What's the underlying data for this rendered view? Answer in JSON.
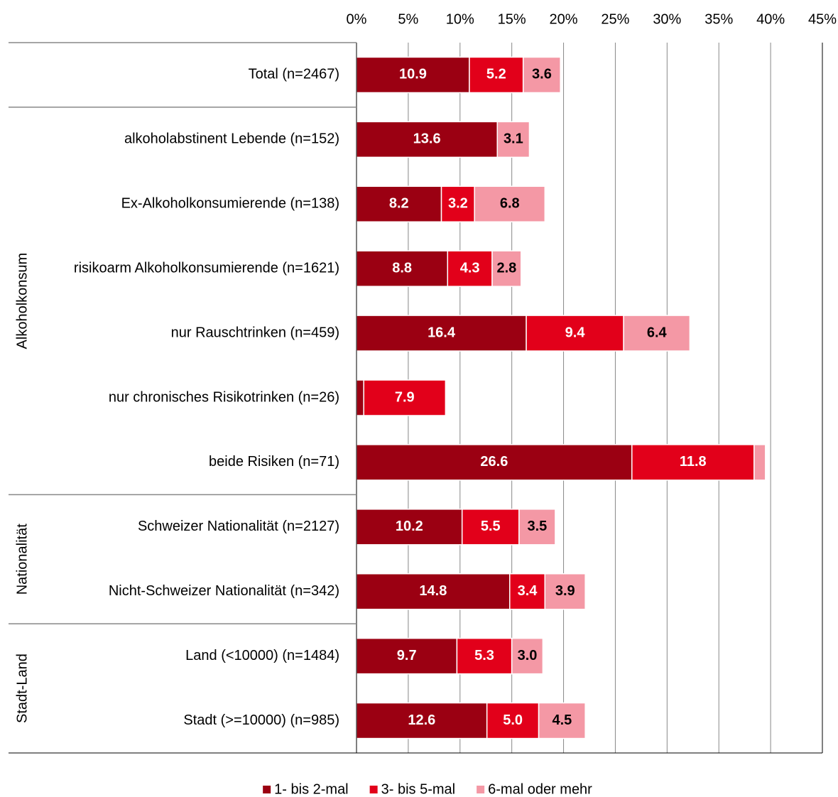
{
  "chart_data": {
    "type": "stacked-barh",
    "categories": [
      "Total (n=2467)",
      "alkoholabstinent Lebende (n=152)",
      "Ex-Alkoholkonsumierende (n=138)",
      "risikoarm Alkoholkonsumierende (n=1621)",
      "nur  Rauschtrinken (n=459)",
      "nur chronisches Risikotrinken (n=26)",
      "beide Risiken (n=71)",
      "Schweizer Nationalität (n=2127)",
      "Nicht-Schweizer Nationalität (n=342)",
      "Land (<10000) (n=1484)",
      "Stadt (>=10000) (n=985)"
    ],
    "groups": [
      {
        "label": null,
        "size": 1
      },
      {
        "label": "Alkoholkonsum",
        "size": 6
      },
      {
        "label": "Nationalität",
        "size": 2
      },
      {
        "label": "Stadt-Land",
        "size": 2
      }
    ],
    "series": [
      {
        "name": "1- bis 2-mal",
        "color": "#9b0012",
        "label_color": "#ffffff",
        "values": [
          10.9,
          13.6,
          8.2,
          8.8,
          16.4,
          0.7,
          26.6,
          10.2,
          14.8,
          9.7,
          12.6
        ],
        "value_labels": [
          "10.9",
          "13.6",
          "8.2",
          "8.8",
          "16.4",
          null,
          "26.6",
          "10.2",
          "14.8",
          "9.7",
          "12.6"
        ]
      },
      {
        "name": "3- bis 5-mal",
        "color": "#e2001a",
        "label_color": "#ffffff",
        "values": [
          5.2,
          null,
          3.2,
          4.3,
          9.4,
          7.9,
          11.8,
          5.5,
          3.4,
          5.3,
          5.0
        ],
        "value_labels": [
          "5.2",
          null,
          "3.2",
          "4.3",
          "9.4",
          "7.9",
          "11.8",
          "5.5",
          "3.4",
          "5.3",
          "5.0"
        ]
      },
      {
        "name": "6-mal oder mehr",
        "color": "#f498a5",
        "label_color": "#000000",
        "values": [
          3.6,
          3.1,
          6.8,
          2.8,
          6.4,
          null,
          1.1,
          3.5,
          3.9,
          3.0,
          4.5
        ],
        "value_labels": [
          "3.6",
          "3.1",
          "6.8",
          "2.8",
          "6.4",
          null,
          null,
          "3.5",
          "3.9",
          "3.0",
          "4.5"
        ]
      }
    ],
    "xlim": [
      0,
      45
    ],
    "xticks": [
      {
        "value": 0,
        "label": "0%"
      },
      {
        "value": 5,
        "label": "5%"
      },
      {
        "value": 10,
        "label": "10%"
      },
      {
        "value": 15,
        "label": "15%"
      },
      {
        "value": 20,
        "label": "20%"
      },
      {
        "value": 25,
        "label": "25%"
      },
      {
        "value": 30,
        "label": "30%"
      },
      {
        "value": 35,
        "label": "35%"
      },
      {
        "value": 40,
        "label": "40%"
      },
      {
        "value": 45,
        "label": "45%"
      }
    ],
    "grid": true,
    "legend": "bottom"
  }
}
